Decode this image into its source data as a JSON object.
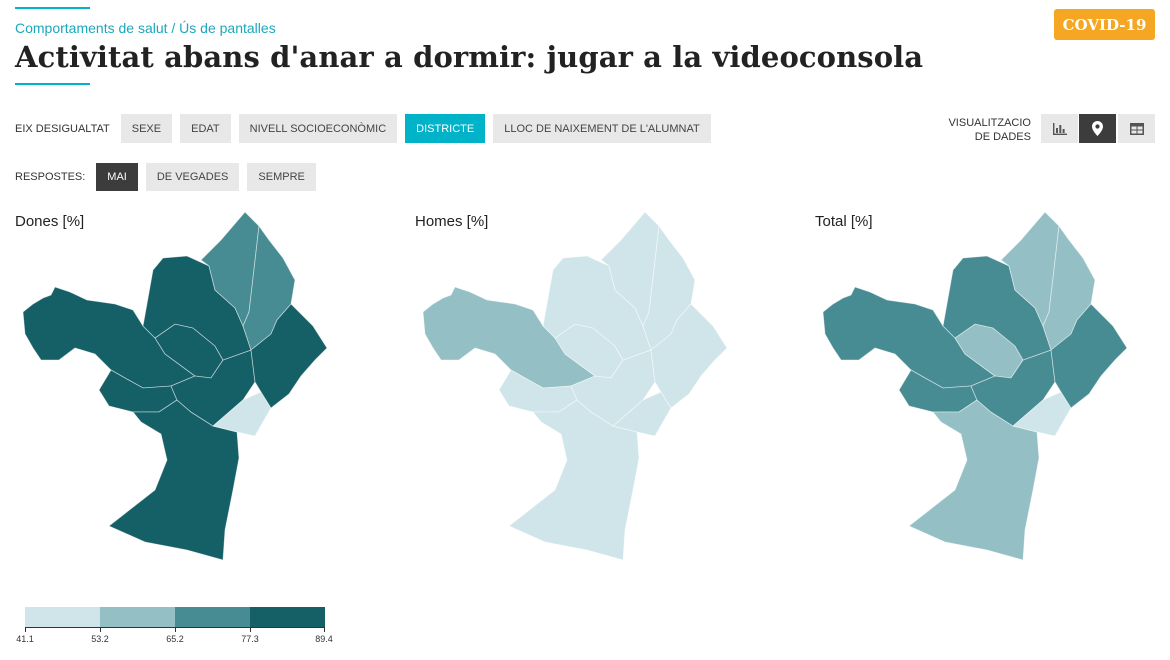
{
  "header": {
    "breadcrumb": "Comportaments de salut / Ús de pantalles",
    "title": "Activitat abans d'anar a dormir: jugar a la videoconsola",
    "badge": "COVID-19"
  },
  "filters": {
    "axis_label": "EIX DESIGUALTAT",
    "axis_options": [
      "SEXE",
      "EDAT",
      "NIVELL SOCIOECONÒMIC",
      "DISTRICTE",
      "LLOC DE NAIXEMENT DE L'ALUMNAT"
    ],
    "axis_selected": "DISTRICTE",
    "answers_label": "RESPOSTES:",
    "answer_options": [
      "MAI",
      "DE VEGADES",
      "SEMPRE"
    ],
    "answer_selected": "MAI"
  },
  "visualization": {
    "label_line1": "VISUALITZACIO",
    "label_line2": "DE DADES",
    "modes": [
      {
        "icon": "bar-chart-icon",
        "active": false
      },
      {
        "icon": "map-pin-icon",
        "active": true
      },
      {
        "icon": "table-icon",
        "active": false
      }
    ]
  },
  "maps": [
    {
      "title": "Dones [%]",
      "district_classes": {
        "ciutat-vella": 0,
        "eixample": 3,
        "sants-montjuic": 3,
        "les-corts": 3,
        "sarria-sant-gervasi": 3,
        "gracia": 3,
        "horta-guinardo": 3,
        "nou-barris": 2,
        "sant-andreu": 2,
        "sant-marti": 3
      }
    },
    {
      "title": "Homes [%]",
      "district_classes": {
        "ciutat-vella": 0,
        "eixample": 0,
        "sants-montjuic": 0,
        "les-corts": 0,
        "sarria-sant-gervasi": 1,
        "gracia": 0,
        "horta-guinardo": 0,
        "nou-barris": 0,
        "sant-andreu": 0,
        "sant-marti": 0
      }
    },
    {
      "title": "Total [%]",
      "district_classes": {
        "ciutat-vella": 0,
        "eixample": 2,
        "sants-montjuic": 1,
        "les-corts": 2,
        "sarria-sant-gervasi": 2,
        "gracia": 1,
        "horta-guinardo": 2,
        "nou-barris": 1,
        "sant-andreu": 1,
        "sant-marti": 2
      }
    }
  ],
  "legend": {
    "colors": [
      "#cfe5e9",
      "#93bfc5",
      "#488c93",
      "#155f66"
    ],
    "breaks": [
      "41.1",
      "53.2",
      "65.2",
      "77.3",
      "89.4"
    ]
  }
}
